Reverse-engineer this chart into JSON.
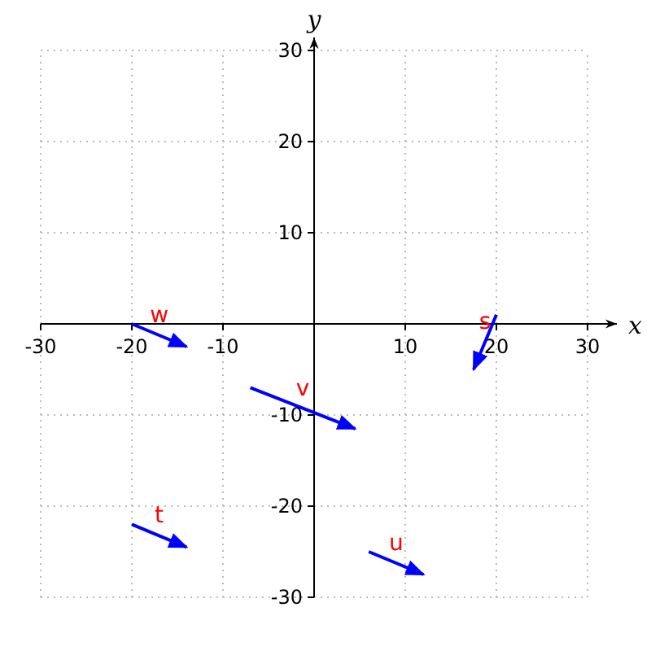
{
  "chart_data": {
    "type": "line",
    "xlabel": "x",
    "ylabel": "y",
    "xlim": [
      -30,
      30
    ],
    "ylim": [
      -30,
      30
    ],
    "xticks": [
      -30,
      -20,
      -10,
      {
        "value": 0,
        "label": null
      },
      10,
      20,
      30
    ],
    "yticks": [
      -30,
      -20,
      -10,
      {
        "value": 0,
        "label": null
      },
      10,
      20,
      30
    ],
    "grid": true,
    "line_style": "solid",
    "series": [
      {
        "name": "w",
        "color": "#0000ff",
        "x": [
          -20,
          -14
        ],
        "values": [
          0,
          -2.5
        ]
      },
      {
        "name": "v",
        "color": "#0000ff",
        "x": [
          -7,
          4.5
        ],
        "values": [
          -7,
          -11.5
        ]
      },
      {
        "name": "t",
        "color": "#0000ff",
        "x": [
          -20,
          -14
        ],
        "values": [
          -22,
          -24.5
        ]
      },
      {
        "name": "u",
        "color": "#0000ff",
        "x": [
          6,
          12
        ],
        "values": [
          -25,
          -27.5
        ]
      },
      {
        "name": "s",
        "color": "#0000ff",
        "x": [
          20,
          17.5
        ],
        "values": [
          1,
          -5
        ]
      }
    ]
  }
}
